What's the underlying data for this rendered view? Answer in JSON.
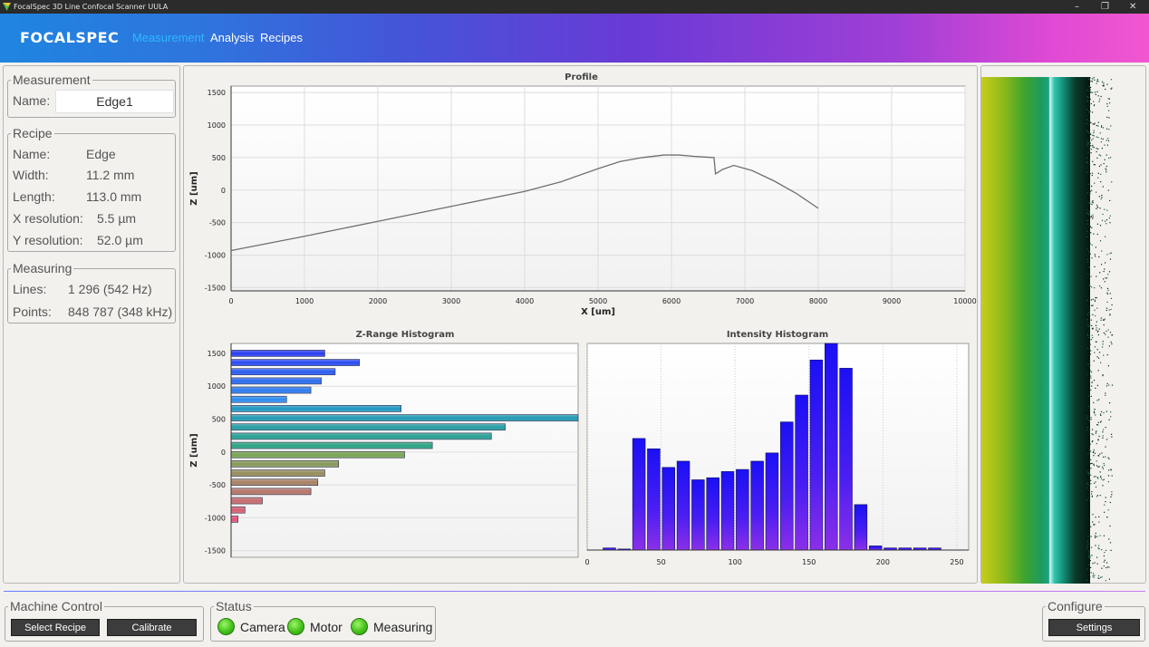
{
  "window": {
    "title": "FocalSpec 3D Line Confocal Scanner UULA",
    "minimize": "–",
    "maximize": "❐",
    "close": "✕"
  },
  "header": {
    "logo": "FOCALSPEC",
    "nav": [
      "Measurement",
      "Analysis",
      "Recipes"
    ],
    "active_nav": "Measurement"
  },
  "measurement": {
    "legend": "Measurement",
    "name_label": "Name:",
    "name_value": "Edge1"
  },
  "recipe": {
    "legend": "Recipe",
    "rows": [
      {
        "label": "Name:",
        "value": "Edge"
      },
      {
        "label": "Width:",
        "value": "11.2 mm"
      },
      {
        "label": "Length:",
        "value": "113.0 mm"
      },
      {
        "label": "X resolution:",
        "value": "5.5 µm"
      },
      {
        "label": "Y resolution:",
        "value": "52.0 µm"
      }
    ]
  },
  "measuring": {
    "legend": "Measuring",
    "rows": [
      {
        "label": "Lines:",
        "value": "1 296  (542 Hz)"
      },
      {
        "label": "Points:",
        "value": "848 787  (348 kHz)"
      }
    ]
  },
  "bottom": {
    "machine_control": {
      "legend": "Machine Control",
      "buttons": [
        "Select Recipe",
        "Calibrate"
      ]
    },
    "status": {
      "legend": "Status",
      "items": [
        "Camera",
        "Motor",
        "Measuring"
      ]
    },
    "configure": {
      "legend": "Configure",
      "button": "Settings"
    }
  },
  "colors": {
    "accent": "#2fb8ff",
    "button_bg": "#3c3c3c",
    "led_green": "#44c21a"
  },
  "chart_data": [
    {
      "type": "line",
      "title": "Profile",
      "xlabel": "X [um]",
      "ylabel": "Z [um]",
      "xlim": [
        0,
        10000
      ],
      "ylim": [
        -1550,
        1600
      ],
      "xticks": [
        0,
        1000,
        2000,
        3000,
        4000,
        5000,
        6000,
        7000,
        8000,
        9000,
        10000
      ],
      "yticks": [
        1500,
        1000,
        500,
        0,
        -500,
        -1000,
        -1500
      ],
      "grid": true,
      "series": [
        {
          "points": [
            [
              0,
              -930
            ],
            [
              1000,
              -710
            ],
            [
              2000,
              -480
            ],
            [
              3000,
              -250
            ],
            [
              4000,
              -20
            ],
            [
              4500,
              130
            ],
            [
              5000,
              330
            ],
            [
              5300,
              440
            ],
            [
              5600,
              500
            ],
            [
              5900,
              540
            ],
            [
              6100,
              540
            ],
            [
              6300,
              520
            ],
            [
              6580,
              500
            ],
            [
              6600,
              250
            ],
            [
              6700,
              320
            ],
            [
              6850,
              380
            ],
            [
              7100,
              300
            ],
            [
              7400,
              140
            ],
            [
              7700,
              -50
            ],
            [
              8000,
              -280
            ]
          ]
        }
      ]
    },
    {
      "type": "bar",
      "orientation": "horizontal",
      "title": "Z-Range Histogram",
      "ylabel": "Z [um]",
      "ylim": [
        -1600,
        1650
      ],
      "yticks": [
        1500,
        1000,
        500,
        0,
        -500,
        -1000,
        -1500
      ],
      "xlim": [
        0,
        100
      ],
      "categories": [
        1500,
        1360,
        1220,
        1080,
        940,
        800,
        660,
        520,
        380,
        240,
        100,
        -40,
        -180,
        -320,
        -460,
        -600,
        -740,
        -880,
        -1020,
        -1160
      ],
      "values": [
        27,
        37,
        30,
        26,
        23,
        16,
        49,
        100,
        79,
        75,
        58,
        50,
        31,
        27,
        25,
        23,
        9,
        4,
        2,
        0
      ]
    },
    {
      "type": "bar",
      "title": "Intensity Histogram",
      "xlim": [
        0,
        258
      ],
      "ylim": [
        0,
        1
      ],
      "xticks": [
        0,
        50,
        100,
        150,
        200,
        250
      ],
      "grid": true,
      "categories": [
        0,
        10,
        20,
        30,
        40,
        50,
        60,
        70,
        80,
        90,
        100,
        110,
        120,
        130,
        140,
        150,
        160,
        170,
        180,
        190,
        200,
        210,
        220,
        230,
        240,
        250
      ],
      "values": [
        0,
        0.01,
        0.005,
        0.54,
        0.49,
        0.4,
        0.43,
        0.34,
        0.35,
        0.38,
        0.39,
        0.43,
        0.47,
        0.62,
        0.75,
        0.92,
        1.0,
        0.88,
        0.22,
        0.02,
        0.01,
        0.01,
        0.01,
        0.01,
        0,
        0
      ]
    }
  ]
}
